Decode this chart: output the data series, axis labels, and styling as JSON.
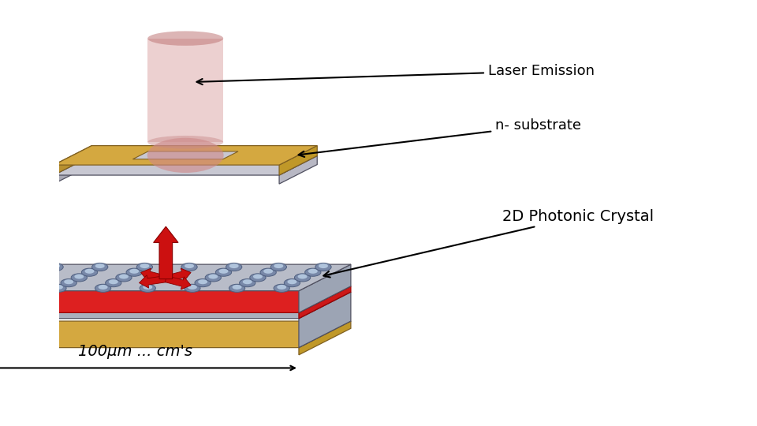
{
  "bg_color": "#ffffff",
  "top_device": {
    "box_color_top": "#c8c8d2",
    "box_color_side_left": "#a8a8b4",
    "box_color_side_right": "#b8b8c4",
    "gold_color": "#d4a840",
    "gold_dark": "#b89030",
    "gold_side": "#c09828"
  },
  "bottom_device": {
    "top_gray": "#b8bcc8",
    "side_left_color": "#8890a0",
    "side_right_color": "#9ca4b4",
    "red_stripe_color": "#dd2020",
    "red_stripe_dark": "#aa1010",
    "mid_gray_top": "#aab0be",
    "mid_gray_left": "#8890a0",
    "mid_gray_right": "#9ca4b4",
    "bot_gold": "#d4a840",
    "bot_gold_dark": "#b89030",
    "bot_gold_side": "#c09828",
    "hole_outer": "#7888a8",
    "hole_inner": "#b0c4dc",
    "arrow_red": "#cc1010",
    "arrow_dark": "#880000"
  },
  "labels": {
    "laser_emission": "Laser Emission",
    "n_substrate": "n- substrate",
    "photonic_crystal": "2D Photonic Crystal",
    "dimension": "100μm ... cm's"
  },
  "font_size_label": 13,
  "font_size_dim": 14
}
